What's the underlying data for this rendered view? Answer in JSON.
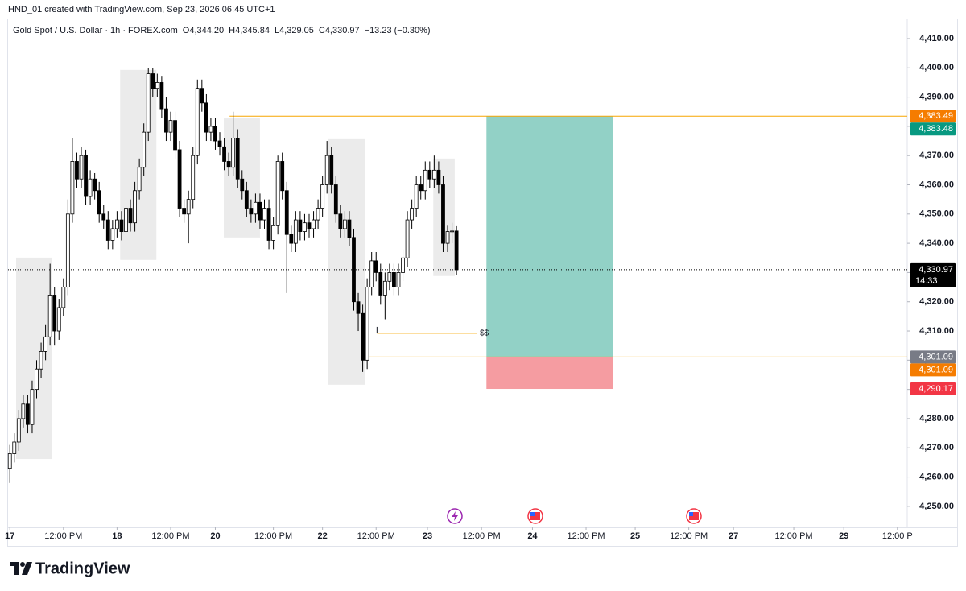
{
  "header": "HND_01 created with TradingView.com, Sep 23, 2026 06:45 UTC+1",
  "brand": "TradingView",
  "chart_data": {
    "type": "candlestick",
    "title": "Gold Spot / U.S. Dollar · 1h · FOREX.com",
    "ohlc_legend": [
      "O4,344.20",
      "H4,345.84",
      "L4,329.05",
      "C4,330.97",
      "−13.23 (−0.30%)"
    ],
    "open": [
      4263,
      4268,
      4272,
      4280,
      4285,
      4278,
      4290,
      4297,
      4303,
      4308,
      4322,
      4310,
      4318,
      4325,
      4350,
      4368,
      4362,
      4370,
      4356,
      4362,
      4358,
      4350,
      4348,
      4341,
      4345,
      4348,
      4344,
      4352,
      4347,
      4358,
      4366,
      4378,
      4398,
      4393,
      4395,
      4386,
      4378,
      4382,
      4372,
      4352,
      4350,
      4355,
      4370,
      4393,
      4388,
      4378,
      4380,
      4375,
      4373,
      4368,
      4366,
      4376,
      4362,
      4358,
      4352,
      4350,
      4354,
      4348,
      4352,
      4341,
      4346,
      4368,
      4358,
      4343,
      4340,
      4348,
      4344,
      4347,
      4345,
      4348,
      4352,
      4360,
      4370,
      4360,
      4350,
      4345,
      4348,
      4342,
      4320,
      4316,
      4300,
      4325,
      4334,
      4330,
      4322,
      4327,
      4330,
      4325,
      4330,
      4335,
      4348,
      4352,
      4360,
      4358,
      4365,
      4362,
      4365,
      4360,
      4340,
      4344,
      4344.2
    ],
    "high": [
      4271,
      4275,
      4283,
      4288,
      4288,
      4293,
      4300,
      4306,
      4312,
      4333,
      4325,
      4321,
      4328,
      4355,
      4376,
      4371,
      4373,
      4372,
      4365,
      4364,
      4361,
      4353,
      4351,
      4348,
      4351,
      4351,
      4355,
      4355,
      4361,
      4369,
      4381,
      4400,
      4400,
      4398,
      4397,
      4390,
      4385,
      4385,
      4375,
      4355,
      4358,
      4373,
      4396,
      4396,
      4391,
      4383,
      4383,
      4378,
      4376,
      4371,
      4385,
      4379,
      4365,
      4361,
      4355,
      4357,
      4357,
      4355,
      4355,
      4349,
      4370,
      4371,
      4361,
      4346,
      4351,
      4351,
      4350,
      4350,
      4351,
      4355,
      4363,
      4375,
      4373,
      4363,
      4353,
      4351,
      4351,
      4345,
      4323,
      4319,
      4328,
      4337,
      4337,
      4333,
      4330,
      4333,
      4333,
      4333,
      4338,
      4351,
      4355,
      4363,
      4363,
      4368,
      4368,
      4370,
      4368,
      4363,
      4346,
      4347,
      4345.84
    ],
    "low": [
      4258,
      4265,
      4269,
      4277,
      4275,
      4275,
      4287,
      4294,
      4300,
      4305,
      4305,
      4307,
      4315,
      4322,
      4347,
      4359,
      4359,
      4353,
      4353,
      4355,
      4347,
      4345,
      4338,
      4338,
      4342,
      4341,
      4341,
      4344,
      4344,
      4355,
      4363,
      4375,
      4390,
      4390,
      4383,
      4375,
      4375,
      4369,
      4349,
      4347,
      4340,
      4352,
      4367,
      4385,
      4375,
      4375,
      4372,
      4370,
      4365,
      4363,
      4363,
      4359,
      4355,
      4349,
      4347,
      4347,
      4345,
      4345,
      4338,
      4338,
      4343,
      4355,
      4323,
      4337,
      4337,
      4341,
      4341,
      4342,
      4342,
      4345,
      4349,
      4357,
      4357,
      4347,
      4342,
      4342,
      4339,
      4317,
      4310,
      4296,
      4297,
      4322,
      4327,
      4319,
      4314,
      4324,
      4322,
      4322,
      4327,
      4332,
      4345,
      4349,
      4355,
      4355,
      4359,
      4359,
      4357,
      4337,
      4337,
      4340,
      4329.05
    ],
    "close": [
      4268,
      4272,
      4280,
      4285,
      4278,
      4290,
      4297,
      4303,
      4308,
      4322,
      4310,
      4318,
      4325,
      4350,
      4368,
      4362,
      4370,
      4356,
      4362,
      4358,
      4350,
      4348,
      4341,
      4345,
      4348,
      4344,
      4352,
      4347,
      4358,
      4366,
      4378,
      4398,
      4393,
      4395,
      4386,
      4378,
      4382,
      4372,
      4352,
      4350,
      4355,
      4370,
      4393,
      4388,
      4378,
      4380,
      4375,
      4373,
      4368,
      4366,
      4376,
      4362,
      4358,
      4352,
      4350,
      4354,
      4348,
      4352,
      4341,
      4346,
      4368,
      4358,
      4343,
      4340,
      4348,
      4344,
      4347,
      4345,
      4348,
      4352,
      4360,
      4370,
      4360,
      4350,
      4345,
      4348,
      4342,
      4320,
      4316,
      4300,
      4325,
      4334,
      4330,
      4322,
      4327,
      4330,
      4325,
      4330,
      4335,
      4348,
      4352,
      4360,
      4358,
      4365,
      4362,
      4365,
      4360,
      4340,
      4344,
      4344.2,
      4330.97
    ],
    "up_color": "#ffffff",
    "down_color": "#000000",
    "border_color": "#000000",
    "grid": false,
    "xlim": [
      -0.4,
      200.9
    ],
    "xticks": [
      {
        "value": 0,
        "label": "17"
      },
      {
        "value": 12,
        "label": "12:00 PM"
      },
      {
        "value": 24,
        "label": "18"
      },
      {
        "value": 36,
        "label": "12:00 PM"
      },
      {
        "value": 46,
        "label": "20"
      },
      {
        "value": 59,
        "label": "12:00 PM"
      },
      {
        "value": 70,
        "label": "22"
      },
      {
        "value": 82,
        "label": "12:00 PM"
      },
      {
        "value": 93.5,
        "label": "23"
      },
      {
        "value": 105.6,
        "label": "12:00 PM"
      },
      {
        "value": 117,
        "label": "24"
      },
      {
        "value": 129,
        "label": "12:00 PM"
      },
      {
        "value": 140,
        "label": "25"
      },
      {
        "value": 152,
        "label": "12:00 PM"
      },
      {
        "value": 162,
        "label": "27"
      },
      {
        "value": 175.5,
        "label": "12:00 PM"
      },
      {
        "value": 186.7,
        "label": "29"
      },
      {
        "value": 198.7,
        "label": "12:00 P"
      }
    ],
    "ylim": [
      4242.8,
      4415.5
    ],
    "yticks": [
      {
        "value": 4250,
        "label": "4,250.00"
      },
      {
        "value": 4260,
        "label": "4,260.00"
      },
      {
        "value": 4270,
        "label": "4,270.00"
      },
      {
        "value": 4280,
        "label": "4,280.00"
      },
      {
        "value": 4290,
        "label": "4,290.00"
      },
      {
        "value": 4300,
        "label": "4,300.00"
      },
      {
        "value": 4310,
        "label": "4,310.00"
      },
      {
        "value": 4320,
        "label": "4,320.00"
      },
      {
        "value": 4330,
        "label": "4,330.00"
      },
      {
        "value": 4340,
        "label": "4,340.00"
      },
      {
        "value": 4350,
        "label": "4,350.00"
      },
      {
        "value": 4360,
        "label": "4,360.00"
      },
      {
        "value": 4370,
        "label": "4,370.00"
      },
      {
        "value": 4380,
        "label": "4,380.00"
      },
      {
        "value": 4390,
        "label": "4,390.00"
      },
      {
        "value": 4400,
        "label": "4,400.00"
      },
      {
        "value": 4410,
        "label": "4,410.00"
      }
    ],
    "zone_color": "#ebebeb",
    "zones": [
      {
        "x": [
          1.4,
          9.5
        ],
        "y": [
          4266.2,
          4335.1
        ]
      },
      {
        "x": [
          24.7,
          32.8
        ],
        "y": [
          4334.3,
          4399.3
        ]
      },
      {
        "x": [
          47.9,
          56.0
        ],
        "y": [
          4342.0,
          4382.7
        ]
      },
      {
        "x": [
          71.2,
          79.5
        ],
        "y": [
          4291.6,
          4375.6
        ]
      },
      {
        "x": [
          94.8,
          99.6
        ],
        "y": [
          4328.8,
          4369.0
        ]
      }
    ],
    "levels": [
      {
        "value": 4383.49,
        "from": 49.2,
        "color": "#f7a600",
        "dash": false
      },
      {
        "value": 4301.09,
        "from": 79.8,
        "color": "#f7a600",
        "dash": false
      },
      {
        "value": 4330.97,
        "from": -0.4,
        "color": "#000000",
        "dash": true
      }
    ],
    "marker": {
      "value": 4309.2,
      "x": [
        82.2,
        104.5
      ],
      "label": "$$",
      "color": "#f7a600"
    },
    "position": {
      "x": [
        106.7,
        135.1
      ],
      "target": 4383.48,
      "entry": 4301.09,
      "stop": 4290.17,
      "profit_color": "#92d1c6",
      "loss_color": "#f59ca1"
    },
    "price_tags": [
      {
        "value": 4383.49,
        "label": "4,383.49",
        "color": "#f57c00"
      },
      {
        "value": 4383.48,
        "label": "4,383.48",
        "color": "#089981"
      },
      {
        "value": 4330.97,
        "label": "4,330.97",
        "color": "#000000"
      },
      {
        "value": 4301.09,
        "label": "4,301.09",
        "color": "#787b86"
      },
      {
        "value": 4301.09,
        "label": "4,301.09",
        "color": "#f57c00"
      },
      {
        "value": 4290.17,
        "label": "4,290.17",
        "color": "#f23645"
      }
    ],
    "countdown": "14:33"
  }
}
